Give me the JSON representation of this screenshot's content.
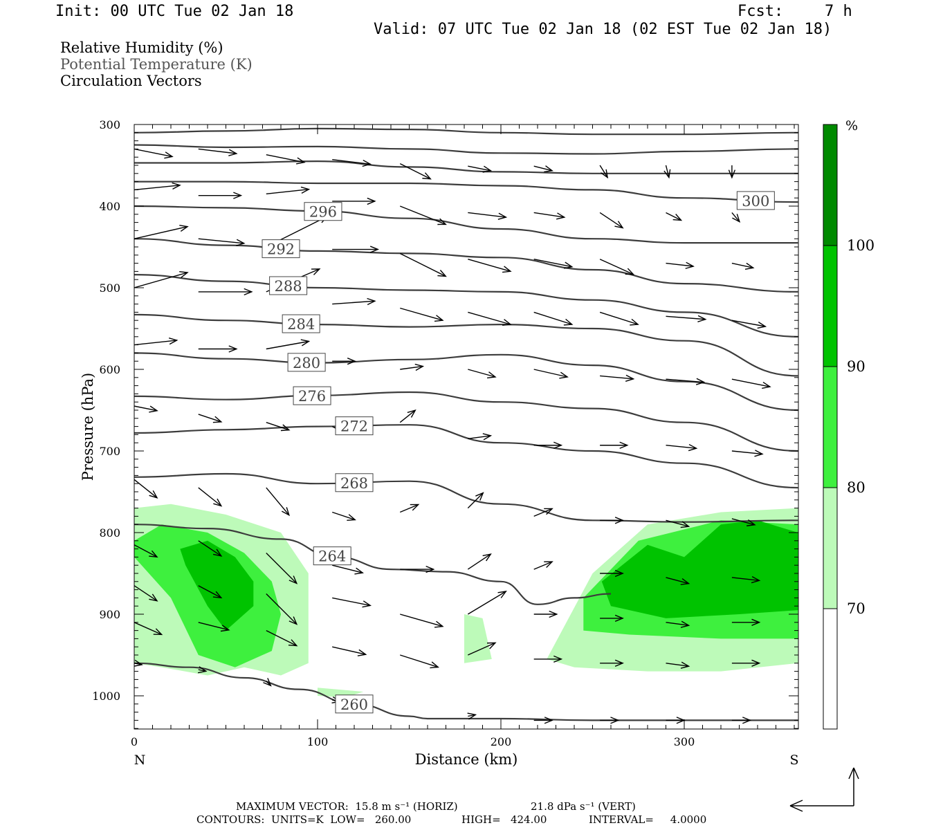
{
  "header": {
    "init": "Init: 00 UTC Tue 02 Jan 18",
    "fcst_label": "Fcst:",
    "fcst_value": "7 h",
    "valid": "Valid: 07 UTC Tue 02 Jan 18 (02 EST Tue 02 Jan 18)"
  },
  "legend": {
    "rh": "Relative Humidity (%)",
    "theta": "Potential Temperature (K)",
    "vectors": "Circulation Vectors"
  },
  "footer": {
    "max_vector": "MAXIMUM VECTOR:  15.8 m s⁻¹ (HORIZ)",
    "max_vert": "21.8 dPa s⁻¹ (VERT)",
    "contours": "CONTOURS:  UNITS=K  LOW=   260.00",
    "high": "HIGH=   424.00",
    "interval": "INTERVAL=     4.0000"
  },
  "colors": {
    "rh_70": "#bdfab9",
    "rh_80": "#3ef03e",
    "rh_90": "#00c300",
    "rh_100": "#008a00",
    "contour": "#3c3c3c"
  },
  "chart_data": {
    "type": "heatmap",
    "xlabel": "Distance (km)",
    "ylabel": "Pressure (hPa)",
    "xlim": [
      0,
      362
    ],
    "ylim": [
      1040,
      300
    ],
    "x_ticks": [
      "0",
      "100",
      "200",
      "300"
    ],
    "y_ticks": [
      "300",
      "400",
      "500",
      "600",
      "700",
      "800",
      "900",
      "1000"
    ],
    "end_labels": {
      "left": "N",
      "right": "S"
    },
    "colorbar": {
      "unit": "%",
      "labels": [
        "100",
        "90",
        "80",
        "70"
      ],
      "levels": [
        70,
        80,
        90,
        100
      ]
    },
    "theta_contours": [
      {
        "label": "260",
        "x": [
          0,
          30,
          60,
          90,
          120,
          150,
          160,
          200,
          250,
          300,
          362
        ],
        "p": [
          960,
          965,
          978,
          992,
          1010,
          1025,
          1028,
          1028,
          1030,
          1030,
          1030
        ]
      },
      {
        "label": "264",
        "x": [
          0,
          40,
          80,
          110,
          140,
          170,
          200,
          220,
          240,
          260
        ],
        "p": [
          790,
          795,
          808,
          830,
          845,
          848,
          860,
          888,
          880,
          875
        ]
      },
      {
        "label": "268",
        "x": [
          0,
          50,
          100,
          150,
          200,
          250,
          300,
          362
        ],
        "p": [
          732,
          728,
          740,
          737,
          765,
          785,
          787,
          785
        ]
      },
      {
        "label": "272",
        "x": [
          0,
          50,
          100,
          150,
          200,
          250,
          300,
          362
        ],
        "p": [
          678,
          674,
          670,
          668,
          690,
          700,
          715,
          745
        ]
      },
      {
        "label": "276",
        "x": [
          0,
          50,
          100,
          150,
          200,
          250,
          300,
          362
        ],
        "p": [
          633,
          637,
          632,
          628,
          640,
          648,
          665,
          700
        ]
      },
      {
        "label": "280",
        "x": [
          0,
          50,
          100,
          150,
          200,
          250,
          300,
          362
        ],
        "p": [
          580,
          587,
          592,
          588,
          582,
          595,
          615,
          650
        ]
      },
      {
        "label": "284",
        "x": [
          0,
          50,
          100,
          150,
          200,
          250,
          300,
          362
        ],
        "p": [
          533,
          540,
          545,
          548,
          545,
          550,
          565,
          608
        ]
      },
      {
        "label": "288",
        "x": [
          0,
          50,
          100,
          150,
          200,
          250,
          300,
          362
        ],
        "p": [
          484,
          492,
          500,
          503,
          505,
          515,
          530,
          560
        ]
      },
      {
        "label": "292",
        "x": [
          0,
          50,
          100,
          150,
          200,
          250,
          300,
          362
        ],
        "p": [
          440,
          448,
          455,
          458,
          463,
          478,
          495,
          505
        ]
      },
      {
        "label": "296",
        "x": [
          0,
          50,
          100,
          150,
          200,
          250,
          300,
          362
        ],
        "p": [
          400,
          402,
          406,
          415,
          428,
          440,
          445,
          445
        ]
      },
      {
        "label": "300",
        "x": [
          0,
          50,
          100,
          150,
          200,
          250,
          300,
          362
        ],
        "p": [
          370,
          370,
          372,
          372,
          375,
          380,
          390,
          395
        ]
      },
      {
        "label": "",
        "x": [
          0,
          50,
          100,
          150,
          200,
          250,
          300,
          362
        ],
        "p": [
          347,
          347,
          345,
          352,
          358,
          360,
          360,
          360
        ]
      },
      {
        "label": "",
        "x": [
          0,
          50,
          100,
          150,
          200,
          250,
          300,
          362
        ],
        "p": [
          325,
          328,
          327,
          330,
          335,
          336,
          333,
          330
        ]
      },
      {
        "label": "",
        "x": [
          0,
          50,
          100,
          150,
          200,
          250,
          300,
          362
        ],
        "p": [
          310,
          308,
          305,
          306,
          310,
          312,
          312,
          310
        ]
      }
    ],
    "rh_regions": [
      {
        "level": 70,
        "x": [
          0,
          20,
          50,
          80,
          95,
          95,
          80,
          60,
          40,
          15,
          0
        ],
        "p": [
          770,
          765,
          778,
          800,
          850,
          960,
          975,
          965,
          975,
          965,
          960
        ]
      },
      {
        "level": 80,
        "x": [
          0,
          15,
          40,
          60,
          75,
          80,
          75,
          55,
          35,
          20,
          0
        ],
        "p": [
          810,
          790,
          800,
          825,
          860,
          900,
          945,
          965,
          950,
          880,
          830
        ]
      },
      {
        "level": 90,
        "x": [
          25,
          40,
          55,
          65,
          65,
          50,
          40,
          28
        ],
        "p": [
          820,
          810,
          830,
          860,
          890,
          920,
          890,
          840
        ]
      },
      {
        "level": 70,
        "x": [
          225,
          250,
          280,
          320,
          362,
          362,
          320,
          280,
          240,
          225
        ],
        "p": [
          955,
          850,
          790,
          775,
          770,
          960,
          970,
          970,
          965,
          955
        ]
      },
      {
        "level": 80,
        "x": [
          245,
          275,
          320,
          362,
          362,
          320,
          270,
          245
        ],
        "p": [
          880,
          810,
          785,
          790,
          930,
          930,
          925,
          920
        ]
      },
      {
        "level": 90,
        "x": [
          255,
          280,
          300,
          320,
          340,
          362,
          362,
          330,
          290,
          260
        ],
        "p": [
          860,
          815,
          830,
          790,
          785,
          800,
          895,
          900,
          905,
          890
        ]
      },
      {
        "level": 70,
        "x": [
          180,
          190,
          195,
          180
        ],
        "p": [
          900,
          905,
          955,
          960
        ]
      },
      {
        "level": 70,
        "x": [
          100,
          125,
          115,
          100
        ],
        "p": [
          990,
          995,
          1002,
          1000
        ]
      }
    ],
    "vectors": [
      {
        "x": 0,
        "p": 330,
        "u": 25,
        "w": -5
      },
      {
        "x": 35,
        "p": 330,
        "u": 25,
        "w": -3
      },
      {
        "x": 72,
        "p": 337,
        "u": 25,
        "w": -5
      },
      {
        "x": 108,
        "p": 343,
        "u": 25,
        "w": -3
      },
      {
        "x": 145,
        "p": 348,
        "u": 20,
        "w": -10
      },
      {
        "x": 182,
        "p": 351,
        "u": 15,
        "w": -3
      },
      {
        "x": 218,
        "p": 351,
        "u": 12,
        "w": -3
      },
      {
        "x": 254,
        "p": 350,
        "u": 5,
        "w": -8
      },
      {
        "x": 290,
        "p": 350,
        "u": 2,
        "w": -8
      },
      {
        "x": 326,
        "p": 350,
        "u": 0,
        "w": -8
      },
      {
        "x": 0,
        "p": 380,
        "u": 30,
        "w": 3
      },
      {
        "x": 35,
        "p": 387,
        "u": 28,
        "w": 0
      },
      {
        "x": 72,
        "p": 385,
        "u": 28,
        "w": 3
      },
      {
        "x": 108,
        "p": 394,
        "u": 28,
        "w": 0
      },
      {
        "x": 145,
        "p": 400,
        "u": 30,
        "w": -12
      },
      {
        "x": 182,
        "p": 408,
        "u": 25,
        "w": -3
      },
      {
        "x": 218,
        "p": 408,
        "u": 20,
        "w": -3
      },
      {
        "x": 254,
        "p": 408,
        "u": 15,
        "w": -10
      },
      {
        "x": 290,
        "p": 408,
        "u": 10,
        "w": -5
      },
      {
        "x": 326,
        "p": 408,
        "u": 5,
        "w": -6
      },
      {
        "x": 0,
        "p": 440,
        "u": 35,
        "w": 8
      },
      {
        "x": 35,
        "p": 440,
        "u": 30,
        "w": -3
      },
      {
        "x": 72,
        "p": 450,
        "u": 40,
        "w": 20
      },
      {
        "x": 108,
        "p": 453,
        "u": 30,
        "w": 0
      },
      {
        "x": 145,
        "p": 458,
        "u": 30,
        "w": -15
      },
      {
        "x": 182,
        "p": 465,
        "u": 28,
        "w": -8
      },
      {
        "x": 218,
        "p": 465,
        "u": 25,
        "w": -5
      },
      {
        "x": 254,
        "p": 465,
        "u": 22,
        "w": -10
      },
      {
        "x": 290,
        "p": 470,
        "u": 18,
        "w": -2
      },
      {
        "x": 326,
        "p": 470,
        "u": 14,
        "w": -3
      },
      {
        "x": 0,
        "p": 500,
        "u": 35,
        "w": 10
      },
      {
        "x": 35,
        "p": 505,
        "u": 35,
        "w": 0
      },
      {
        "x": 72,
        "p": 505,
        "u": 35,
        "w": 15
      },
      {
        "x": 108,
        "p": 520,
        "u": 28,
        "w": 2
      },
      {
        "x": 145,
        "p": 525,
        "u": 28,
        "w": -8
      },
      {
        "x": 182,
        "p": 530,
        "u": 28,
        "w": -8
      },
      {
        "x": 218,
        "p": 530,
        "u": 25,
        "w": -8
      },
      {
        "x": 254,
        "p": 530,
        "u": 25,
        "w": -8
      },
      {
        "x": 290,
        "p": 535,
        "u": 26,
        "w": -2
      },
      {
        "x": 326,
        "p": 540,
        "u": 22,
        "w": -4
      },
      {
        "x": 0,
        "p": 570,
        "u": 28,
        "w": 3
      },
      {
        "x": 35,
        "p": 575,
        "u": 25,
        "w": 0
      },
      {
        "x": 72,
        "p": 575,
        "u": 28,
        "w": 5
      },
      {
        "x": 108,
        "p": 590,
        "u": 15,
        "w": 0
      },
      {
        "x": 145,
        "p": 600,
        "u": 15,
        "w": 2
      },
      {
        "x": 182,
        "p": 600,
        "u": 18,
        "w": -5
      },
      {
        "x": 218,
        "p": 600,
        "u": 22,
        "w": -5
      },
      {
        "x": 254,
        "p": 608,
        "u": 22,
        "w": -2
      },
      {
        "x": 290,
        "p": 612,
        "u": 25,
        "w": -2
      },
      {
        "x": 326,
        "p": 612,
        "u": 25,
        "w": -5
      },
      {
        "x": 0,
        "p": 645,
        "u": 15,
        "w": -3
      },
      {
        "x": 35,
        "p": 655,
        "u": 15,
        "w": -5
      },
      {
        "x": 72,
        "p": 665,
        "u": 15,
        "w": -5
      },
      {
        "x": 108,
        "p": 670,
        "u": 10,
        "w": -5
      },
      {
        "x": 145,
        "p": 665,
        "u": 10,
        "w": 8
      },
      {
        "x": 182,
        "p": 685,
        "u": 15,
        "w": 2
      },
      {
        "x": 218,
        "p": 693,
        "u": 18,
        "w": 0
      },
      {
        "x": 254,
        "p": 693,
        "u": 18,
        "w": 0
      },
      {
        "x": 290,
        "p": 693,
        "u": 20,
        "w": -2
      },
      {
        "x": 326,
        "p": 700,
        "u": 20,
        "w": -2
      },
      {
        "x": 0,
        "p": 735,
        "u": 15,
        "w": -12
      },
      {
        "x": 35,
        "p": 745,
        "u": 15,
        "w": -12
      },
      {
        "x": 72,
        "p": 745,
        "u": 15,
        "w": -18
      },
      {
        "x": 108,
        "p": 775,
        "u": 15,
        "w": -5
      },
      {
        "x": 145,
        "p": 775,
        "u": 12,
        "w": 5
      },
      {
        "x": 182,
        "p": 770,
        "u": 10,
        "w": 10
      },
      {
        "x": 218,
        "p": 780,
        "u": 12,
        "w": 5
      },
      {
        "x": 254,
        "p": 785,
        "u": 15,
        "w": 0
      },
      {
        "x": 290,
        "p": 785,
        "u": 15,
        "w": -4
      },
      {
        "x": 326,
        "p": 783,
        "u": 15,
        "w": -4
      },
      {
        "x": 0,
        "p": 815,
        "u": 15,
        "w": -8
      },
      {
        "x": 35,
        "p": 810,
        "u": 15,
        "w": -10
      },
      {
        "x": 72,
        "p": 825,
        "u": 20,
        "w": -20
      },
      {
        "x": 108,
        "p": 840,
        "u": 20,
        "w": -5
      },
      {
        "x": 145,
        "p": 845,
        "u": 22,
        "w": 0
      },
      {
        "x": 182,
        "p": 845,
        "u": 15,
        "w": 10
      },
      {
        "x": 218,
        "p": 845,
        "u": 12,
        "w": 5
      },
      {
        "x": 254,
        "p": 850,
        "u": 15,
        "w": 0
      },
      {
        "x": 290,
        "p": 855,
        "u": 15,
        "w": -4
      },
      {
        "x": 326,
        "p": 855,
        "u": 18,
        "w": -2
      },
      {
        "x": 0,
        "p": 865,
        "u": 15,
        "w": -10
      },
      {
        "x": 35,
        "p": 865,
        "u": 15,
        "w": -8
      },
      {
        "x": 72,
        "p": 875,
        "u": 20,
        "w": -20
      },
      {
        "x": 108,
        "p": 880,
        "u": 25,
        "w": -5
      },
      {
        "x": 145,
        "p": 900,
        "u": 28,
        "w": -8
      },
      {
        "x": 182,
        "p": 900,
        "u": 25,
        "w": 15
      },
      {
        "x": 218,
        "p": 900,
        "u": 15,
        "w": 0
      },
      {
        "x": 254,
        "p": 905,
        "u": 15,
        "w": 0
      },
      {
        "x": 290,
        "p": 910,
        "u": 15,
        "w": -2
      },
      {
        "x": 326,
        "p": 910,
        "u": 18,
        "w": 0
      },
      {
        "x": 0,
        "p": 910,
        "u": 18,
        "w": -8
      },
      {
        "x": 35,
        "p": 910,
        "u": 20,
        "w": -5
      },
      {
        "x": 72,
        "p": 920,
        "u": 20,
        "w": -10
      },
      {
        "x": 108,
        "p": 940,
        "u": 22,
        "w": -5
      },
      {
        "x": 145,
        "p": 950,
        "u": 25,
        "w": -8
      },
      {
        "x": 182,
        "p": 950,
        "u": 18,
        "w": 8
      },
      {
        "x": 218,
        "p": 955,
        "u": 18,
        "w": 0
      },
      {
        "x": 254,
        "p": 960,
        "u": 15,
        "w": 0
      },
      {
        "x": 290,
        "p": 960,
        "u": 15,
        "w": -2
      },
      {
        "x": 326,
        "p": 960,
        "u": 18,
        "w": 0
      },
      {
        "x": 0,
        "p": 960,
        "u": 5,
        "w": -1
      },
      {
        "x": 35,
        "p": 968,
        "u": 5,
        "w": -1
      },
      {
        "x": 72,
        "p": 982,
        "u": 3,
        "w": -3
      },
      {
        "x": 108,
        "p": 1005,
        "u": 5,
        "w": -1
      },
      {
        "x": 182,
        "p": 1025,
        "u": 5,
        "w": 1
      },
      {
        "x": 218,
        "p": 1030,
        "u": 12,
        "w": 0
      },
      {
        "x": 254,
        "p": 1030,
        "u": 12,
        "w": 0
      },
      {
        "x": 290,
        "p": 1030,
        "u": 12,
        "w": 0
      },
      {
        "x": 326,
        "p": 1030,
        "u": 12,
        "w": 0
      }
    ]
  }
}
